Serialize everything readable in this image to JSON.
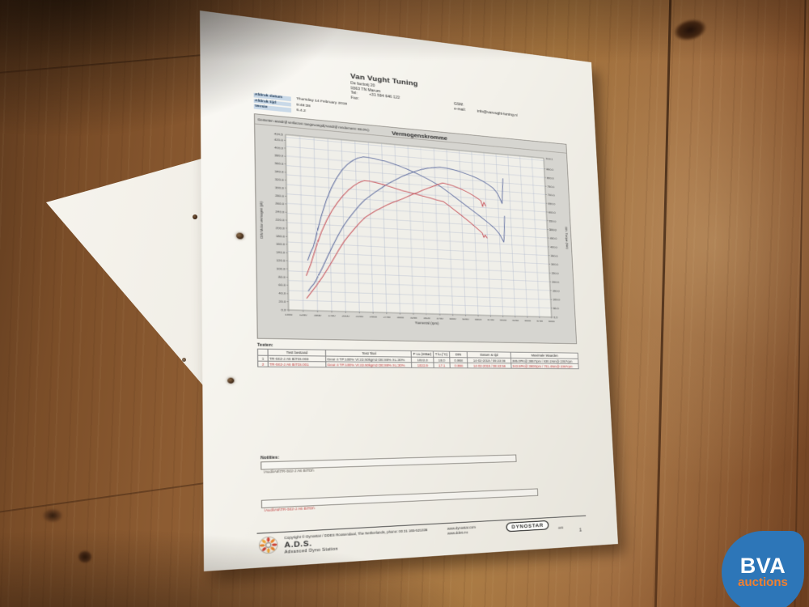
{
  "watermark": {
    "line1": "BVA",
    "line2": "auctions",
    "blue": "#2d76b8",
    "orange": "#f08031"
  },
  "document": {
    "header": {
      "company": "Van Vught Tuning",
      "addr1": "De factorij 20",
      "addr2": "9363 TN Marum",
      "tel_label": "Tel:",
      "tel_value": "+31 594 646 122",
      "fax_label": "Fax:",
      "gsm_label": "GSM:",
      "email_label": "e-mail:",
      "email_value": "info@vanvught-tuning.nl"
    },
    "meta": [
      {
        "label": "Afdruk datum",
        "value": "Thursday 14 February 2019"
      },
      {
        "label": "Afdruk tijd",
        "value": "9:49:38"
      },
      {
        "label": "Versie",
        "value": "6.4.2"
      }
    ],
    "chart_header": {
      "annotation": "Gemeten aandrijf verliezen toegevoegd(Aandrijf rendement: 88.0%)",
      "title": "Vermogenskromme"
    },
    "table": {
      "title": "Testen:",
      "headers": [
        "",
        "Test bestand",
        "Test Titel",
        "P Lu.(mBar)",
        "T lu.(°C)",
        "DIN",
        "Datum & tijd",
        "Maximale Waarden"
      ],
      "rows": [
        {
          "color": "dark",
          "cells": [
            "1",
            "TR-042-J A6 BiTDI.003",
            "Gear 4 TP:100% VI:22.50kgm2 DE:88% XL:30%",
            "1022.3",
            "18.0",
            "0.968",
            "14-02-2019 / 09:23:08",
            "385.0PK@ 3857rpm / 830.1Nm@ 2357rpm"
          ]
        },
        {
          "color": "red",
          "cells": [
            "2",
            "TR-042-J A6 BiTDI.001",
            "Gear 4 TP:100% VI:22.50kgm2 DE:88% XL:30%",
            "1022.9",
            "17.1",
            "0.966",
            "14-02-2019 / 08:43:56",
            "343.5PK@ 3900rpm / 701.4Nm@ 2397rpm"
          ]
        }
      ]
    },
    "notes": {
      "label": "Notities:",
      "box1": "\\Audi\\A6\\TR-042-J A6 BiTDI\\",
      "box2": "\\Audi\\A6\\TR-042-J A6 BiTDI\\"
    },
    "footer": {
      "copyright": "Copyright ©  Dynostar / DDES  Roosendaal, The Netherlands, phone: 00 31 165-521336",
      "ads": "A.D.S.",
      "ads_sub": "Advanced Dyno Station",
      "site1": "www.dynostar.com",
      "site2": "www.ddes.eu",
      "badge": "DYNOSTAR",
      "badge_suffix": "4WD",
      "page": "1"
    }
  },
  "chart_data": {
    "type": "line",
    "title": "Vermogenskromme",
    "annotation": "Gemeten aandrijf verliezen toegevoegd(Aandrijf rendement: 88.0%)",
    "xlabel": "Toerental (rpm)",
    "ylabel_left": "DIN Motor vermogen (pk)",
    "ylabel_right": "DIN Torque (Nm)",
    "x_range": [
      1000,
      6000
    ],
    "x_step": 250,
    "y_left_range": [
      0,
      434.5
    ],
    "y_left_step": 20,
    "y_left_top_label": "434.5",
    "y_right_range": [
      0,
      913.1
    ],
    "y_right_step": 50,
    "y_right_top_label": "913.1",
    "grid": true,
    "plot_bg": "#f0efe9",
    "grid_color": "#a9b4cb",
    "series": [
      {
        "name": "TR-042-J A6 BiTDI.003 vermogen (pk)",
        "axis": "left",
        "color": "#54639a",
        "points": [
          [
            1350,
            48
          ],
          [
            1400,
            58
          ],
          [
            1450,
            66
          ],
          [
            1500,
            78
          ],
          [
            1600,
            105
          ],
          [
            1700,
            135
          ],
          [
            1800,
            163
          ],
          [
            1900,
            190
          ],
          [
            2000,
            214
          ],
          [
            2100,
            234
          ],
          [
            2200,
            252
          ],
          [
            2300,
            269
          ],
          [
            2400,
            284
          ],
          [
            2500,
            295
          ],
          [
            2600,
            306
          ],
          [
            2700,
            316
          ],
          [
            2800,
            326
          ],
          [
            2900,
            335
          ],
          [
            3000,
            343
          ],
          [
            3100,
            351
          ],
          [
            3200,
            358
          ],
          [
            3300,
            364
          ],
          [
            3400,
            370
          ],
          [
            3500,
            375
          ],
          [
            3600,
            379
          ],
          [
            3700,
            382
          ],
          [
            3857,
            385
          ],
          [
            4000,
            384
          ],
          [
            4100,
            382
          ],
          [
            4200,
            379
          ],
          [
            4300,
            376
          ],
          [
            4400,
            372
          ],
          [
            4500,
            368
          ],
          [
            4600,
            363
          ],
          [
            4700,
            357
          ],
          [
            4800,
            350
          ],
          [
            4900,
            341
          ],
          [
            4950,
            334
          ],
          [
            5000,
            325
          ],
          [
            5050,
            310
          ],
          [
            5080,
            300
          ],
          [
            5100,
            332
          ],
          [
            5120,
            368
          ]
        ]
      },
      {
        "name": "TR-042-J A6 BiTDI.003 koppel (Nm)",
        "axis": "right",
        "color": "#54639a",
        "points": [
          [
            1350,
            260
          ],
          [
            1400,
            300
          ],
          [
            1450,
            330
          ],
          [
            1500,
            380
          ],
          [
            1600,
            490
          ],
          [
            1700,
            580
          ],
          [
            1800,
            650
          ],
          [
            1900,
            706
          ],
          [
            2000,
            750
          ],
          [
            2100,
            782
          ],
          [
            2200,
            806
          ],
          [
            2300,
            822
          ],
          [
            2400,
            830
          ],
          [
            2500,
            829
          ],
          [
            2600,
            826
          ],
          [
            2700,
            821
          ],
          [
            2800,
            817
          ],
          [
            2900,
            811
          ],
          [
            3000,
            803
          ],
          [
            3100,
            794
          ],
          [
            3200,
            785
          ],
          [
            3300,
            774
          ],
          [
            3400,
            763
          ],
          [
            3500,
            751
          ],
          [
            3600,
            739
          ],
          [
            3700,
            725
          ],
          [
            3857,
            701
          ],
          [
            4000,
            674
          ],
          [
            4100,
            654
          ],
          [
            4200,
            634
          ],
          [
            4300,
            614
          ],
          [
            4400,
            594
          ],
          [
            4500,
            574
          ],
          [
            4600,
            554
          ],
          [
            4700,
            533
          ],
          [
            4800,
            512
          ],
          [
            4900,
            489
          ],
          [
            4950,
            473
          ],
          [
            5000,
            456
          ],
          [
            5050,
            430
          ],
          [
            5080,
            412
          ],
          [
            5100,
            458
          ],
          [
            5120,
            560
          ]
        ]
      },
      {
        "name": "TR-042-J A6 BiTDI.001 vermogen (pk)",
        "axis": "left",
        "color": "#c4454e",
        "points": [
          [
            1320,
            30
          ],
          [
            1400,
            45
          ],
          [
            1500,
            63
          ],
          [
            1600,
            83
          ],
          [
            1700,
            105
          ],
          [
            1800,
            128
          ],
          [
            1900,
            152
          ],
          [
            2000,
            174
          ],
          [
            2100,
            192
          ],
          [
            2200,
            209
          ],
          [
            2300,
            225
          ],
          [
            2397,
            239
          ],
          [
            2500,
            249
          ],
          [
            2600,
            258
          ],
          [
            2700,
            266
          ],
          [
            2800,
            274
          ],
          [
            2900,
            281
          ],
          [
            3000,
            287
          ],
          [
            3100,
            293
          ],
          [
            3200,
            300
          ],
          [
            3300,
            307
          ],
          [
            3400,
            313
          ],
          [
            3500,
            320
          ],
          [
            3600,
            326
          ],
          [
            3700,
            332
          ],
          [
            3800,
            338
          ],
          [
            3900,
            343.5
          ],
          [
            4000,
            341
          ],
          [
            4100,
            338
          ],
          [
            4200,
            334
          ],
          [
            4300,
            329
          ],
          [
            4400,
            323
          ],
          [
            4500,
            316
          ],
          [
            4600,
            308
          ],
          [
            4650,
            303
          ],
          [
            4680,
            288
          ],
          [
            4710,
            300
          ],
          [
            4745,
            290
          ]
        ]
      },
      {
        "name": "TR-042-J A6 BiTDI.001 koppel (Nm)",
        "axis": "right",
        "color": "#c4454e",
        "points": [
          [
            1320,
            180
          ],
          [
            1400,
            240
          ],
          [
            1500,
            330
          ],
          [
            1600,
            410
          ],
          [
            1700,
            475
          ],
          [
            1800,
            528
          ],
          [
            1900,
            572
          ],
          [
            2000,
            610
          ],
          [
            2100,
            642
          ],
          [
            2200,
            668
          ],
          [
            2300,
            688
          ],
          [
            2397,
            701
          ],
          [
            2500,
            700
          ],
          [
            2600,
            697
          ],
          [
            2700,
            691
          ],
          [
            2800,
            685
          ],
          [
            2900,
            678
          ],
          [
            3000,
            670
          ],
          [
            3100,
            663
          ],
          [
            3200,
            658
          ],
          [
            3300,
            653
          ],
          [
            3400,
            647
          ],
          [
            3500,
            641
          ],
          [
            3600,
            635
          ],
          [
            3700,
            629
          ],
          [
            3800,
            623
          ],
          [
            3900,
            618
          ],
          [
            4000,
            599
          ],
          [
            4100,
            578
          ],
          [
            4200,
            558
          ],
          [
            4300,
            537
          ],
          [
            4400,
            515
          ],
          [
            4500,
            492
          ],
          [
            4600,
            469
          ],
          [
            4650,
            456
          ],
          [
            4680,
            432
          ],
          [
            4710,
            446
          ],
          [
            4745,
            430
          ]
        ]
      }
    ]
  }
}
